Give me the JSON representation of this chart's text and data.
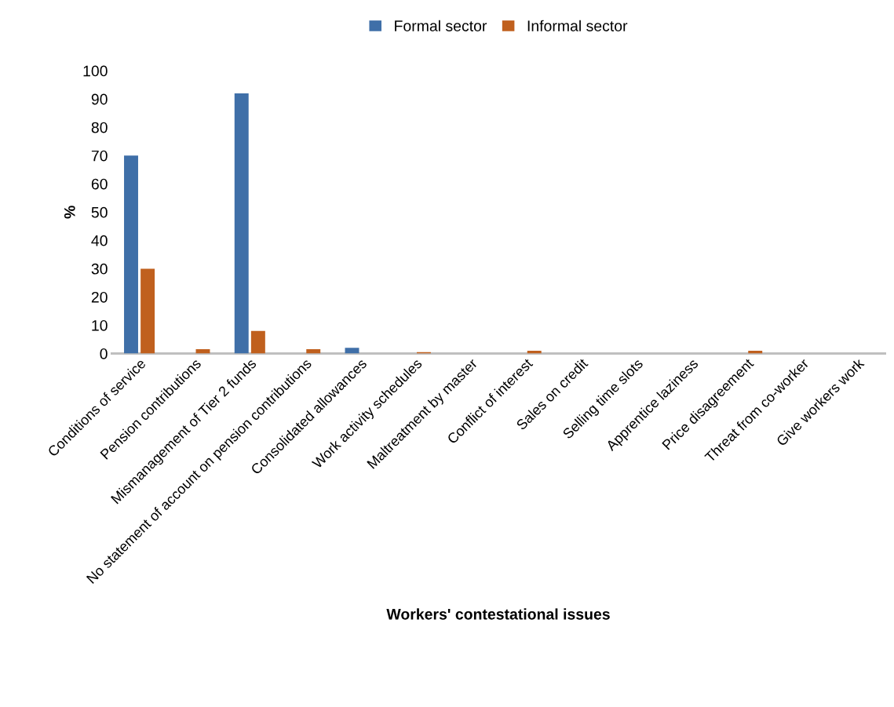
{
  "chart_data": {
    "type": "bar",
    "xlabel": "Workers' contestational issues",
    "ylabel": "%",
    "categories": [
      "Conditions of service",
      "Pension contributions",
      "Mismanagement of Tier 2 funds",
      "No statement of account on pension contributions",
      "Consolidated allowances",
      "Work activity schedules",
      "Maltreatment by master",
      "Conflict of interest",
      "Sales on credit",
      "Selling time slots",
      "Apprentice laziness",
      "Price disagreement",
      "Threat from co-worker",
      "Give workers work"
    ],
    "series": [
      {
        "name": "Formal sector",
        "color": "#3f6fa8",
        "values": [
          70,
          0,
          92,
          0,
          2,
          0,
          0,
          0,
          0,
          0,
          0,
          0,
          0,
          0
        ]
      },
      {
        "name": "Informal sector",
        "color": "#c0601e",
        "values": [
          30,
          1.5,
          8,
          1.5,
          0,
          0.5,
          0,
          1,
          0,
          0,
          0,
          1,
          0,
          0
        ]
      }
    ],
    "ylim": [
      0,
      100
    ],
    "yticks": [
      0,
      10,
      20,
      30,
      40,
      50,
      60,
      70,
      80,
      90,
      100
    ],
    "grid": false,
    "legend": "top"
  }
}
